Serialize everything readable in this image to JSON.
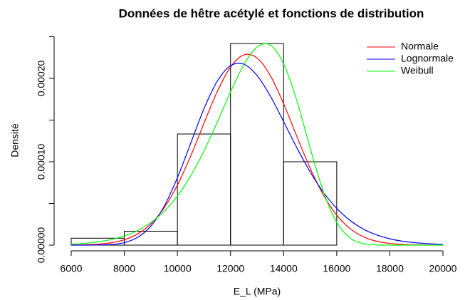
{
  "chart_data": {
    "type": "histogram",
    "title": "Données de hêtre acétylé et fonctions de distribution",
    "xlabel": "E_L (MPa)",
    "ylabel": "Densité",
    "bins": [
      6000,
      8000,
      10000,
      12000,
      14000,
      16000
    ],
    "values": [
      8.3e-06,
      1.67e-05,
      0.0001333,
      0.0002417,
      0.0001
    ],
    "bar_color": "#000000",
    "xlim": [
      6000,
      20000
    ],
    "xticks": [
      6000,
      8000,
      10000,
      12000,
      14000,
      16000,
      18000,
      20000
    ],
    "ylim": [
      0,
      0.00025
    ],
    "yticks": [
      {
        "value": 0,
        "label": "0.00000"
      },
      {
        "value": 0.0001,
        "label": "0.00010"
      },
      {
        "value": 0.0002,
        "label": "0.00020"
      }
    ],
    "yticks_unlabeled": [
      5e-05,
      0.00015,
      0.00025
    ],
    "legend": "top-right",
    "curve_x": [
      6000,
      6500,
      7000,
      7500,
      8000,
      8500,
      9000,
      9500,
      10000,
      10500,
      11000,
      11500,
      12000,
      12500,
      13000,
      13500,
      14000,
      14500,
      15000,
      15500,
      16000,
      16500,
      17000,
      17500,
      18000,
      18500,
      19000,
      19500,
      20000
    ],
    "series": [
      {
        "name": "Normale",
        "color": "#ff0000",
        "values": [
          2e-07,
          4.5e-07,
          1.19e-06,
          2.9e-06,
          6.5e-06,
          1.342e-05,
          2.55e-05,
          4.47e-05,
          7.2e-05,
          0.0001069,
          0.0001462,
          0.0001842,
          0.0002136,
          0.0002282,
          0.0002244,
          0.0002033,
          0.0001696,
          0.0001303,
          9.22e-05,
          6.01e-05,
          3.6e-05,
          1.99e-05,
          1.01e-05,
          4.7e-06,
          2e-06,
          8e-07,
          3e-07,
          1e-07,
          0
        ]
      },
      {
        "name": "Lognormale",
        "color": "#0000ff",
        "values": [
          0,
          0,
          1.4e-07,
          7.6e-07,
          3.02e-06,
          9.25e-06,
          2.28e-05,
          4.66e-05,
          8.09e-05,
          0.0001222,
          0.0001636,
          0.0001966,
          0.0002152,
          0.000217,
          0.0002034,
          0.0001787,
          0.0001482,
          0.0001167,
          8.78e-05,
          6.33e-05,
          4.41e-05,
          2.97e-05,
          1.93e-05,
          1.23e-05,
          7.6e-06,
          4.6e-06,
          2.8e-06,
          1.6e-06,
          9e-07
        ]
      },
      {
        "name": "Weibull",
        "color": "#00ff00",
        "values": [
          1.18e-06,
          2.2e-06,
          3.93e-06,
          6.68e-06,
          1.101e-05,
          1.753e-05,
          2.708e-05,
          4.055e-05,
          5.896e-05,
          8.3e-05,
          0.0001129,
          0.0001474,
          0.0001837,
          0.0002163,
          0.0002377,
          0.0002398,
          0.0002175,
          0.000173,
          0.0001165,
          6.4e-05,
          2.74e-05,
          8.6e-06,
          1.8e-06,
          2e-07,
          0,
          0,
          0,
          0,
          0
        ]
      }
    ]
  }
}
